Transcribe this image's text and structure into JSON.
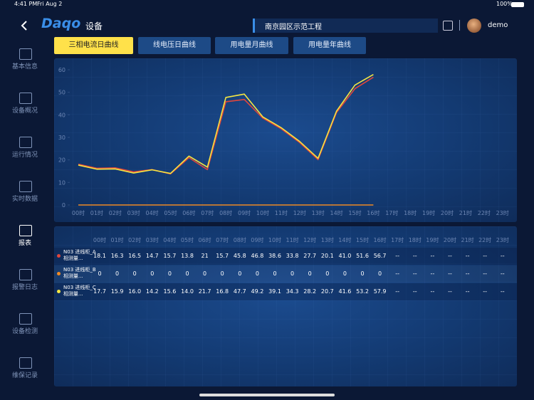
{
  "status_bar": {
    "time": "4:41 PM",
    "date": "Fri Aug 2",
    "battery": "100%"
  },
  "header": {
    "logo": "Daqo",
    "title": "设备",
    "project": "南京园区示范工程",
    "user": "demo"
  },
  "tabs": [
    "三相电流日曲线",
    "线电压日曲线",
    "用电量月曲线",
    "用电量年曲线"
  ],
  "active_tab": 0,
  "sidebar": [
    "基本信息",
    "设备概况",
    "运行情况",
    "实时数据",
    "报表",
    "报警日志",
    "设备检测",
    "维保记录"
  ],
  "active_sidebar": 4,
  "chart_data": {
    "type": "line",
    "categories": [
      "00时",
      "01时",
      "02时",
      "03时",
      "04时",
      "05时",
      "06时",
      "07时",
      "08时",
      "09时",
      "10时",
      "11时",
      "12时",
      "13时",
      "14时",
      "15时",
      "16时",
      "17时",
      "18时",
      "19时",
      "20时",
      "21时",
      "22时",
      "23时"
    ],
    "series": [
      {
        "name": "N03 进线柜_A相测量...",
        "color": "#e0463c",
        "values": [
          18.1,
          16.3,
          16.5,
          14.7,
          15.7,
          13.8,
          21,
          15.7,
          45.8,
          46.8,
          38.6,
          33.8,
          27.7,
          20.1,
          41.0,
          51.6,
          56.7,
          null,
          null,
          null,
          null,
          null,
          null,
          null
        ],
        "value_labels": [
          "18.1",
          "16.3",
          "16.5",
          "14.7",
          "15.7",
          "13.8",
          "21",
          "15.7",
          "45.8",
          "46.8",
          "38.6",
          "33.8",
          "27.7",
          "20.1",
          "41.0",
          "51.6",
          "56.7",
          "--",
          "--",
          "--",
          "--",
          "--",
          "--",
          "--"
        ]
      },
      {
        "name": "N03 进线柜_B相测量...",
        "color": "#f08a24",
        "values": [
          0,
          0,
          0,
          0,
          0,
          0,
          0,
          0,
          0,
          0,
          0,
          0,
          0,
          0,
          0,
          0,
          0,
          null,
          null,
          null,
          null,
          null,
          null,
          null
        ],
        "value_labels": [
          "0",
          "0",
          "0",
          "0",
          "0",
          "0",
          "0",
          "0",
          "0",
          "0",
          "0",
          "0",
          "0",
          "0",
          "0",
          "0",
          "0",
          "--",
          "--",
          "--",
          "--",
          "--",
          "--",
          "--"
        ]
      },
      {
        "name": "N03 进线柜_C相测量...",
        "color": "#f5e642",
        "values": [
          17.7,
          15.9,
          16.0,
          14.2,
          15.6,
          14.0,
          21.7,
          16.8,
          47.7,
          49.2,
          39.1,
          34.3,
          28.2,
          20.7,
          41.6,
          53.2,
          57.9,
          null,
          null,
          null,
          null,
          null,
          null,
          null
        ],
        "value_labels": [
          "17.7",
          "15.9",
          "16.0",
          "14.2",
          "15.6",
          "14.0",
          "21.7",
          "16.8",
          "47.7",
          "49.2",
          "39.1",
          "34.3",
          "28.2",
          "20.7",
          "41.6",
          "53.2",
          "57.9",
          "--",
          "--",
          "--",
          "--",
          "--",
          "--",
          "--"
        ]
      }
    ],
    "ylim": [
      0,
      60
    ],
    "yticks": [
      0,
      10,
      20,
      30,
      40,
      50,
      60
    ]
  }
}
